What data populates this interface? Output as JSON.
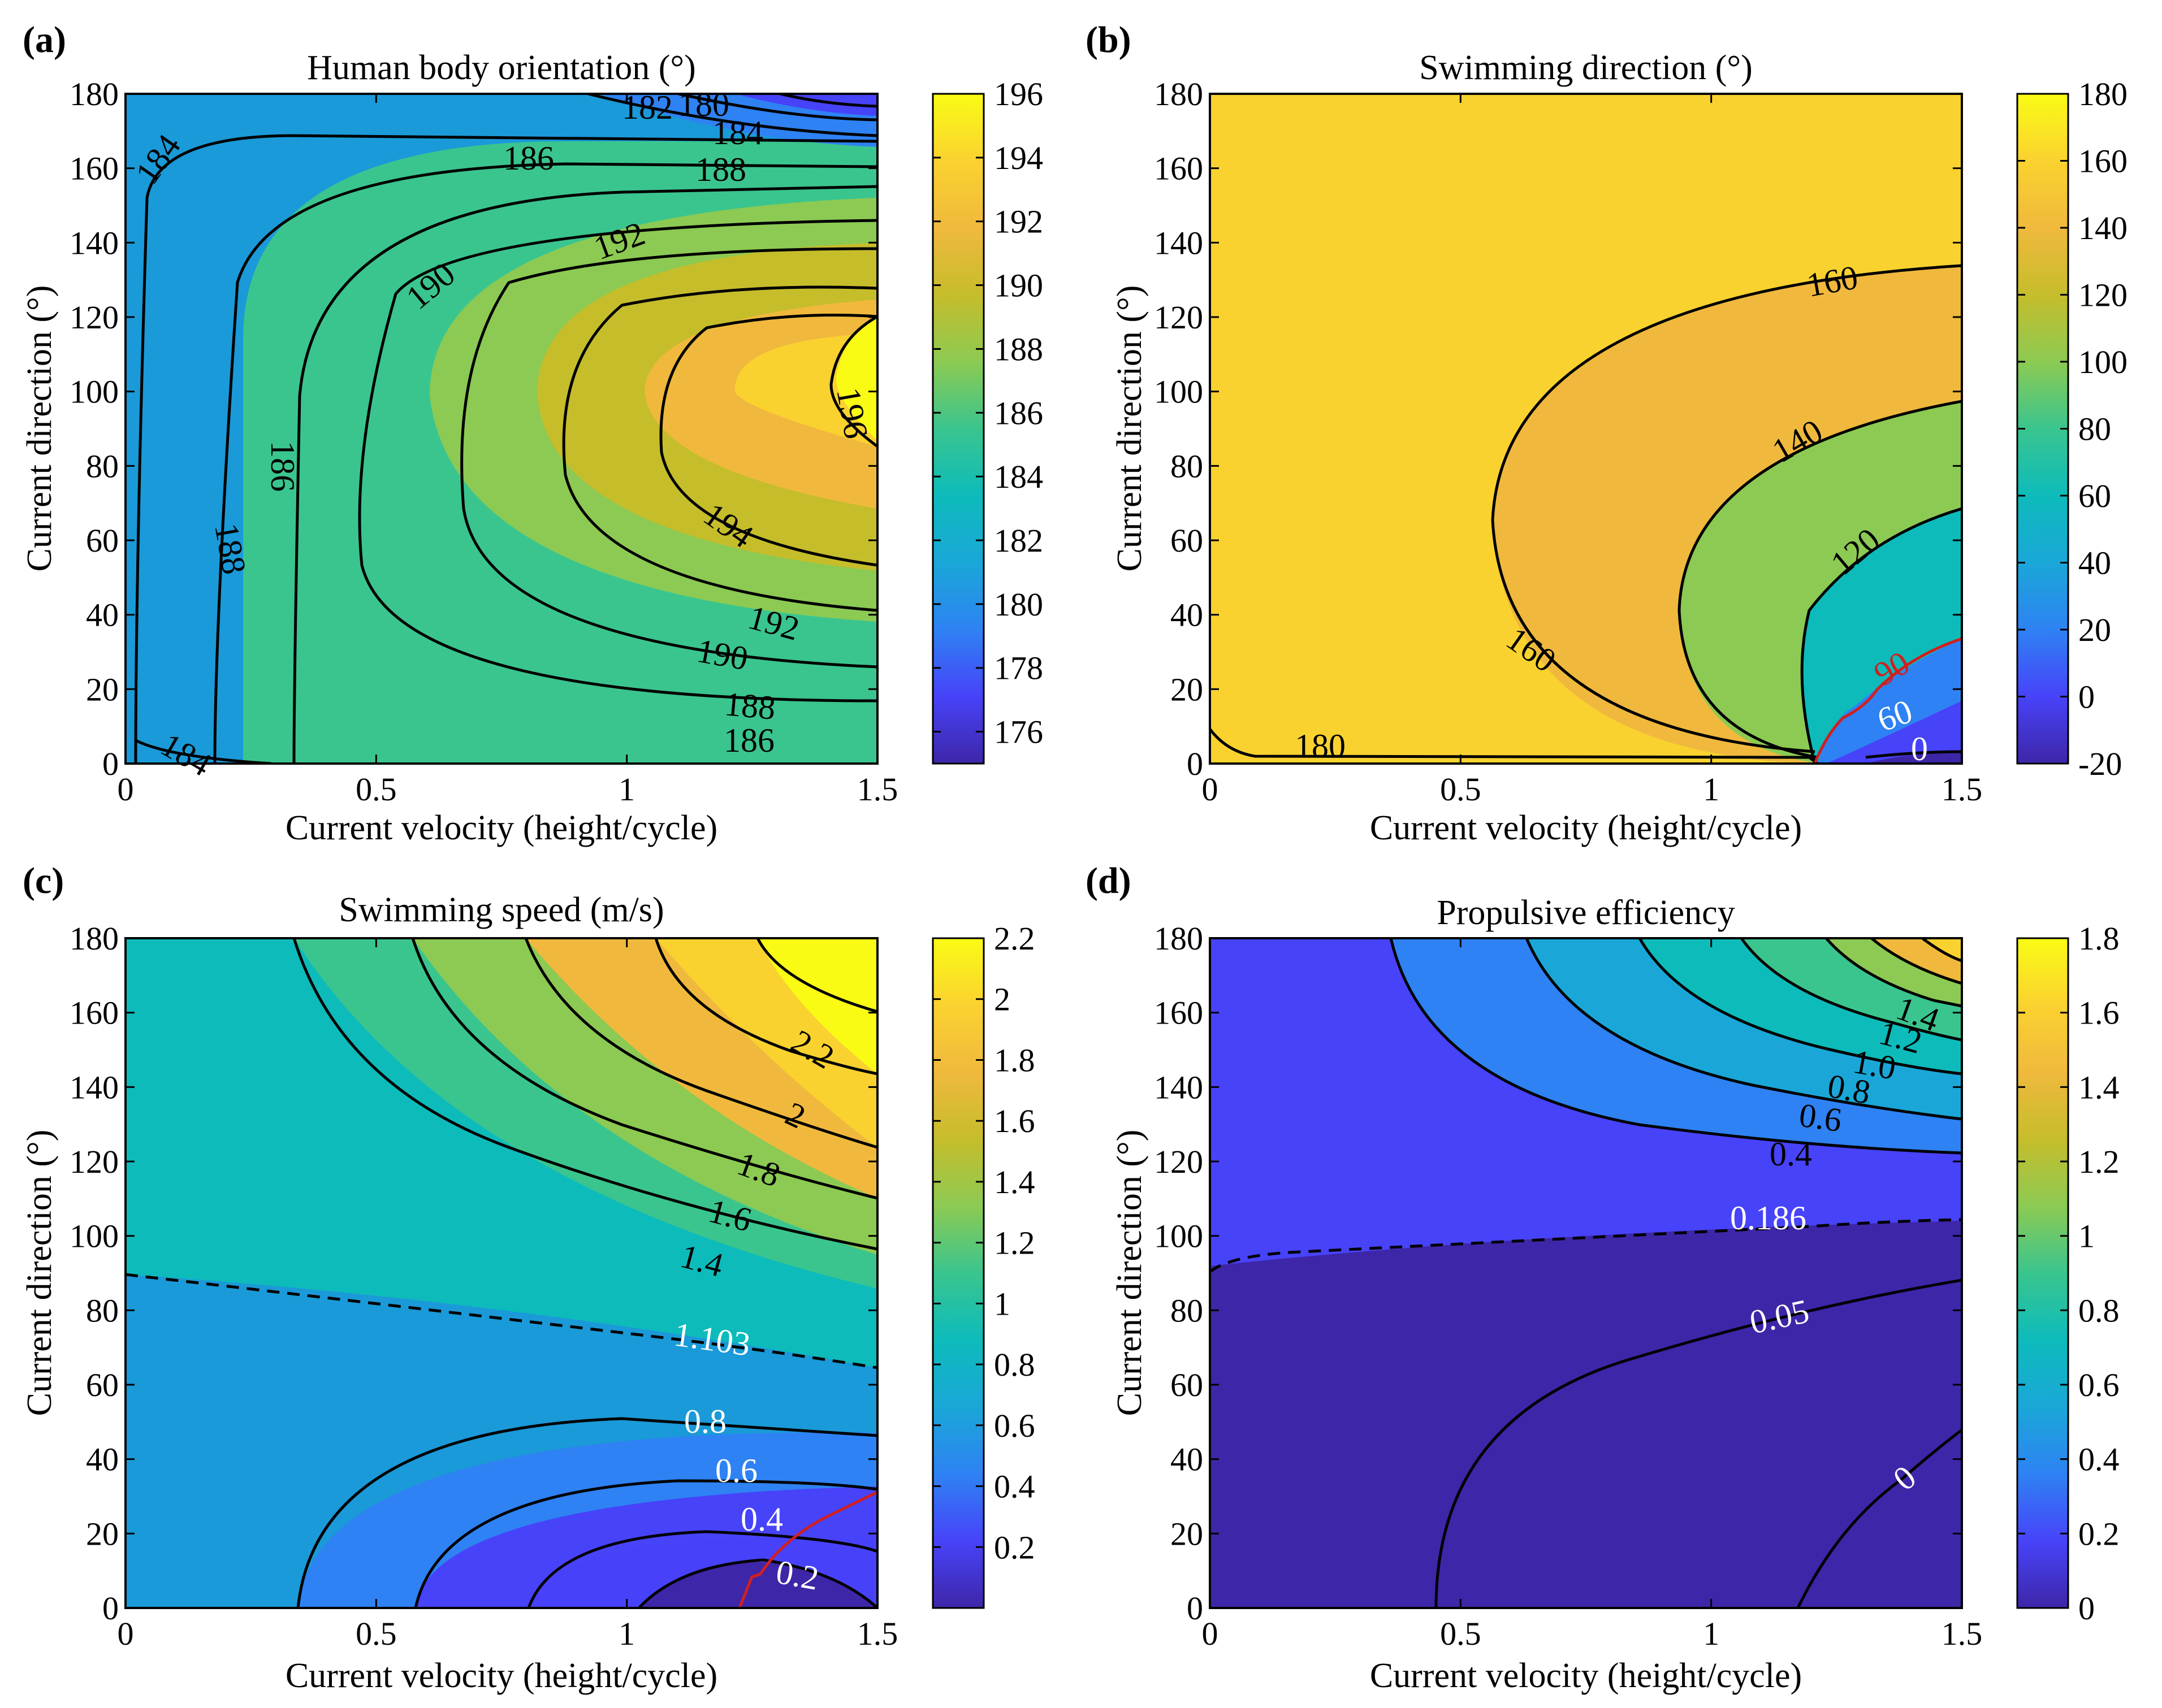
{
  "figure": {
    "panel_letters": [
      "(a)",
      "(b)",
      "(c)",
      "(d)"
    ]
  },
  "colormap": [
    "#3e26a8",
    "#4743f9",
    "#2e82f3",
    "#1aa7d8",
    "#0dbbbb",
    "#3ac58e",
    "#8cca53",
    "#c6bd2b",
    "#f0b93d",
    "#fad22f",
    "#f9fb15"
  ],
  "chart_data": [
    {
      "type": "contour",
      "panel": "(a)",
      "title": "Human body orientation (°)",
      "xlabel": "Current velocity (height/cycle)",
      "ylabel": "Current direction (°)",
      "xlim": [
        0,
        1.5
      ],
      "ylim": [
        0,
        180
      ],
      "xticks": [
        "0",
        "0.5",
        "1",
        "1.5"
      ],
      "yticks": [
        "0",
        "20",
        "40",
        "60",
        "80",
        "100",
        "120",
        "140",
        "160",
        "180"
      ],
      "colorbar": {
        "min": 175,
        "max": 196,
        "ticks": [
          "176",
          "178",
          "180",
          "182",
          "184",
          "186",
          "188",
          "190",
          "192",
          "194",
          "196"
        ]
      },
      "contour_levels": [
        "180",
        "182",
        "184",
        "184",
        "186",
        "186",
        "188",
        "188",
        "190",
        "190",
        "192",
        "192",
        "194",
        "196",
        "184",
        "186",
        "188"
      ],
      "peak": {
        "x": 1.5,
        "y": 100,
        "value": 196
      }
    },
    {
      "type": "contour",
      "panel": "(b)",
      "title": "Swimming direction (°)",
      "xlabel": "Current velocity (height/cycle)",
      "ylabel": "Current direction (°)",
      "xlim": [
        0,
        1.5
      ],
      "ylim": [
        0,
        180
      ],
      "xticks": [
        "0",
        "0.5",
        "1",
        "1.5"
      ],
      "yticks": [
        "0",
        "20",
        "40",
        "60",
        "80",
        "100",
        "120",
        "140",
        "160",
        "180"
      ],
      "colorbar": {
        "min": -20,
        "max": 180,
        "ticks": [
          "-20",
          "0",
          "20",
          "40",
          "60",
          "80",
          "100",
          "120",
          "140",
          "160",
          "180"
        ]
      },
      "contour_levels": [
        "180",
        "160",
        "160",
        "140",
        "120",
        "90",
        "60",
        "0"
      ],
      "highlight_level": "90"
    },
    {
      "type": "contour",
      "panel": "(c)",
      "title": "Swimming speed (m/s)",
      "xlabel": "Current velocity (height/cycle)",
      "ylabel": "Current direction (°)",
      "xlim": [
        0,
        1.5
      ],
      "ylim": [
        0,
        180
      ],
      "xticks": [
        "0",
        "0.5",
        "1",
        "1.5"
      ],
      "yticks": [
        "0",
        "20",
        "40",
        "60",
        "80",
        "100",
        "120",
        "140",
        "160",
        "180"
      ],
      "colorbar": {
        "min": 0,
        "max": 2.2,
        "ticks": [
          "0.2",
          "0.4",
          "0.6",
          "0.8",
          "1",
          "1.2",
          "1.4",
          "1.6",
          "1.8",
          "2",
          "2.2"
        ]
      },
      "contour_levels": [
        "2.2",
        "2",
        "1.8",
        "1.6",
        "1.4",
        "1.103",
        "0.8",
        "0.6",
        "0.4",
        "0.2"
      ],
      "dashed_level": "1.103"
    },
    {
      "type": "contour",
      "panel": "(d)",
      "title": "Propulsive efficiency",
      "xlabel": "Current velocity (height/cycle)",
      "ylabel": "Current direction (°)",
      "xlim": [
        0,
        1.5
      ],
      "ylim": [
        0,
        180
      ],
      "xticks": [
        "0",
        "0.5",
        "1",
        "1.5"
      ],
      "yticks": [
        "0",
        "20",
        "40",
        "60",
        "80",
        "100",
        "120",
        "140",
        "160",
        "180"
      ],
      "colorbar": {
        "min": 0,
        "max": 1.8,
        "ticks": [
          "0",
          "0.2",
          "0.4",
          "0.6",
          "0.8",
          "1",
          "1.2",
          "1.4",
          "1.6",
          "1.8"
        ]
      },
      "contour_levels": [
        "1.4",
        "1.2",
        "1.0",
        "0.8",
        "0.6",
        "0.4",
        "0.186",
        "0.05",
        "0"
      ],
      "dashed_level": "0.186"
    }
  ]
}
